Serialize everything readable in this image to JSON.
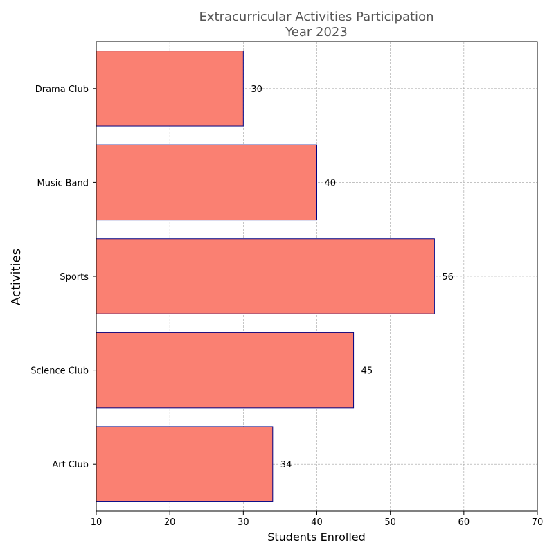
{
  "chart_data": {
    "type": "bar",
    "orientation": "horizontal",
    "title_line1": "Extracurricular Activities Participation",
    "title_line2": "Year 2023",
    "xlabel": "Students Enrolled",
    "ylabel": "Activities",
    "xlim": [
      10,
      70
    ],
    "xticks": [
      "10",
      "20",
      "30",
      "40",
      "50",
      "60",
      "70"
    ],
    "categories": [
      "Art Club",
      "Science Club",
      "Sports",
      "Music Band",
      "Drama Club"
    ],
    "values": [
      34,
      45,
      56,
      40,
      30
    ],
    "data_labels": [
      "34",
      "45",
      "56",
      "40",
      "30"
    ],
    "bar_color": "#fa8072",
    "bar_edge_color": "#000080",
    "grid": true,
    "grid_style": "dashed",
    "grid_color": "#a0a0a0"
  }
}
